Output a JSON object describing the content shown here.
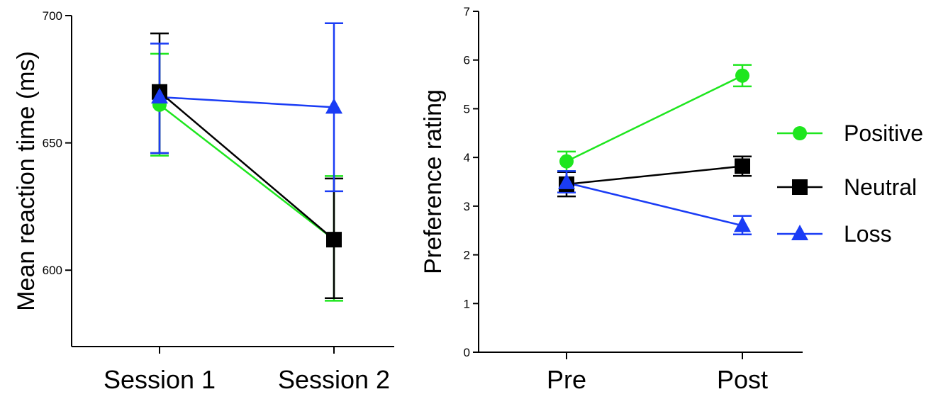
{
  "colors": {
    "Positive": "#1ee61e",
    "Neutral": "#000000",
    "Loss": "#1a3cf5"
  },
  "chart_data": [
    {
      "type": "line",
      "title": "",
      "xlabel": "",
      "ylabel": "Mean reaction time (ms)",
      "categories": [
        "Session 1",
        "Session 2"
      ],
      "ylim": [
        570,
        700
      ],
      "yticks": [
        600,
        650,
        700
      ],
      "grid": false,
      "series": [
        {
          "name": "Positive",
          "marker": "circle",
          "values": [
            665,
            612
          ],
          "err_high": [
            685,
            637
          ],
          "err_low": [
            645,
            588
          ]
        },
        {
          "name": "Neutral",
          "marker": "square",
          "values": [
            670,
            612
          ],
          "err_high": [
            693,
            636
          ],
          "err_low": [
            646,
            589
          ]
        },
        {
          "name": "Loss",
          "marker": "triangle",
          "values": [
            668,
            664
          ],
          "err_high": [
            689,
            697
          ],
          "err_low": [
            646,
            631
          ]
        }
      ]
    },
    {
      "type": "line",
      "title": "",
      "xlabel": "",
      "ylabel": "Preference rating",
      "categories": [
        "Pre",
        "Post"
      ],
      "ylim": [
        0,
        7
      ],
      "yticks": [
        0,
        1,
        2,
        3,
        4,
        5,
        6,
        7
      ],
      "grid": false,
      "legend_position": "right",
      "series": [
        {
          "name": "Positive",
          "marker": "circle",
          "values": [
            3.92,
            5.68
          ],
          "err_high": [
            4.12,
            5.9
          ],
          "err_low": [
            3.72,
            5.46
          ]
        },
        {
          "name": "Neutral",
          "marker": "square",
          "values": [
            3.45,
            3.82
          ],
          "err_high": [
            3.7,
            4.02
          ],
          "err_low": [
            3.2,
            3.62
          ]
        },
        {
          "name": "Loss",
          "marker": "triangle",
          "values": [
            3.48,
            2.6
          ],
          "err_high": [
            3.72,
            2.8
          ],
          "err_low": [
            3.28,
            2.42
          ]
        }
      ]
    }
  ],
  "legend": {
    "items": [
      {
        "label": "Positive",
        "marker": "circle",
        "series": "Positive"
      },
      {
        "label": "Neutral",
        "marker": "square",
        "series": "Neutral"
      },
      {
        "label": "Loss",
        "marker": "triangle",
        "series": "Loss"
      }
    ]
  }
}
